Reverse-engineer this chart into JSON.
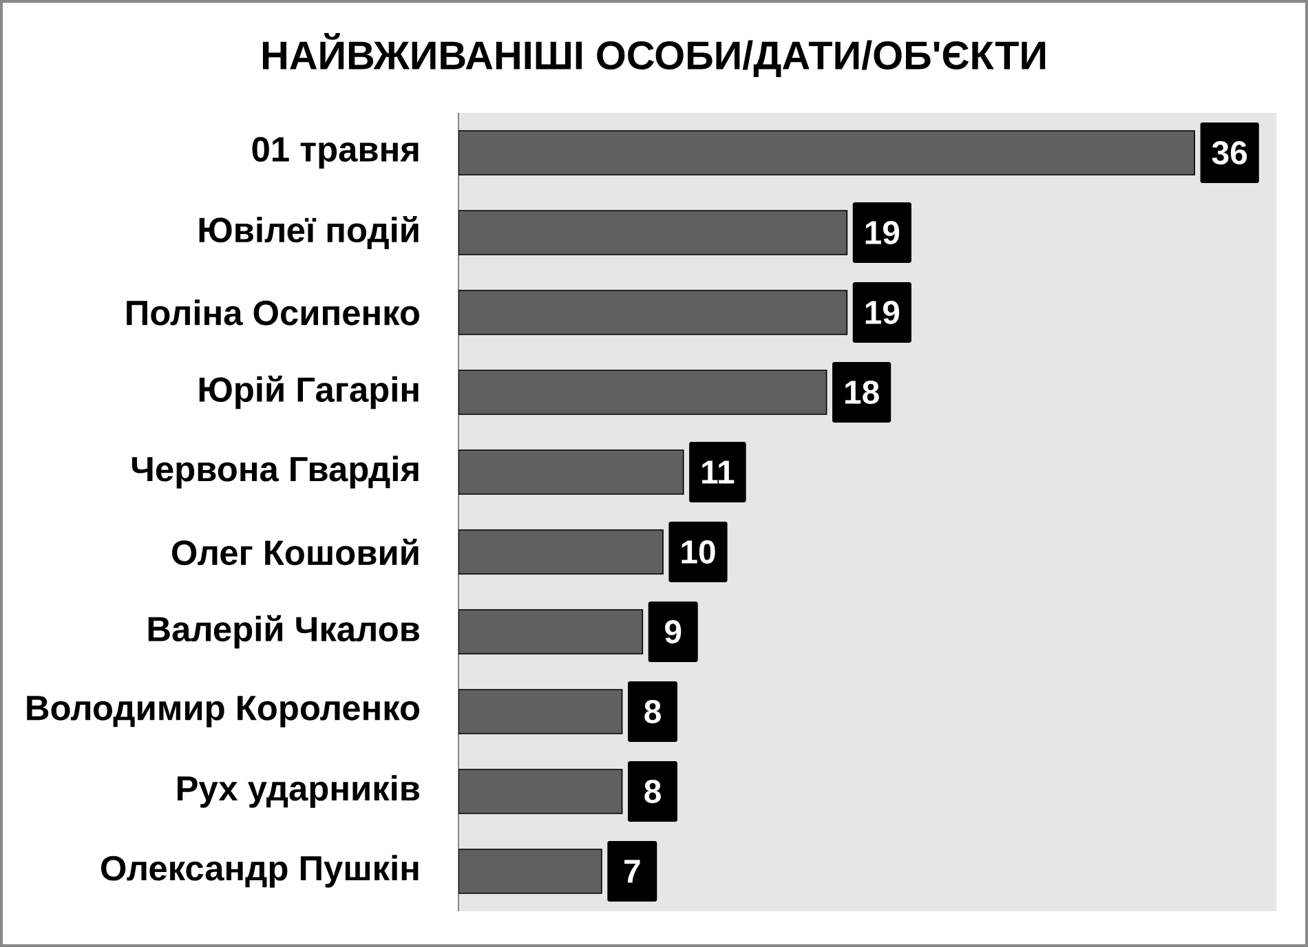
{
  "chart_data": {
    "type": "bar",
    "orientation": "horizontal",
    "title": "НАЙВЖИВАНІШІ ОСОБИ/ДАТИ/ОБ'ЄКТИ",
    "categories": [
      "01 травня",
      "Ювілеї подій",
      "Поліна Осипенко",
      "Юрій Гагарін",
      "Червона Гвардія",
      "Олег Кошовий",
      "Валерій Чкалов",
      "Володимир Короленко",
      "Рух ударників",
      "Олександр Пушкін"
    ],
    "values": [
      36,
      19,
      19,
      18,
      11,
      10,
      9,
      8,
      8,
      7
    ],
    "color": "#606060",
    "xlim": [
      0,
      40
    ],
    "data_labels": true,
    "tick_labels": "y"
  }
}
